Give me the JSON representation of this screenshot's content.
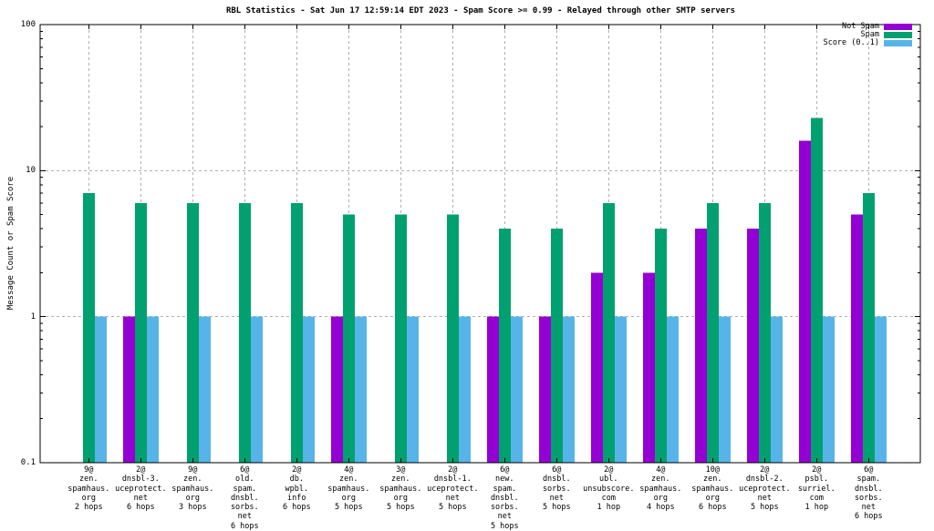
{
  "chart_data": {
    "type": "bar",
    "title": "RBL Statistics - Sat Jun 17 12:59:14 EDT 2023 - Spam Score >= 0.99 - Relayed through other SMTP servers",
    "ylabel": "Message Count or Spam Score",
    "yscale": "log",
    "ylim": [
      0.1,
      100
    ],
    "ytick_values": [
      0.1,
      1,
      10,
      100
    ],
    "ytick_labels": [
      "0.1",
      "1",
      "10",
      "100"
    ],
    "grid": true,
    "legend_position": "top-right-inside",
    "categories": [
      [
        "9@",
        "zen.",
        "spamhaus.",
        "org",
        "2 hops"
      ],
      [
        "2@",
        "dnsbl-3.",
        "uceprotect.",
        "net",
        "6 hops"
      ],
      [
        "9@",
        "zen.",
        "spamhaus.",
        "org",
        "3 hops"
      ],
      [
        "6@",
        "old.",
        "spam.",
        "dnsbl.",
        "sorbs.",
        "net",
        "6 hops"
      ],
      [
        "2@",
        "db.",
        "wpbl.",
        "info",
        "6 hops"
      ],
      [
        "4@",
        "zen.",
        "spamhaus.",
        "org",
        "5 hops"
      ],
      [
        "3@",
        "zen.",
        "spamhaus.",
        "org",
        "5 hops"
      ],
      [
        "2@",
        "dnsbl-1.",
        "uceprotect.",
        "net",
        "5 hops"
      ],
      [
        "6@",
        "new.",
        "spam.",
        "dnsbl.",
        "sorbs.",
        "net",
        "5 hops"
      ],
      [
        "6@",
        "dnsbl.",
        "sorbs.",
        "net",
        "5 hops"
      ],
      [
        "2@",
        "ubl.",
        "unsubscore.",
        "com",
        "1 hop"
      ],
      [
        "4@",
        "zen.",
        "spamhaus.",
        "org",
        "4 hops"
      ],
      [
        "10@",
        "zen.",
        "spamhaus.",
        "org",
        "6 hops"
      ],
      [
        "2@",
        "dnsbl-2.",
        "uceprotect.",
        "net",
        "5 hops"
      ],
      [
        "2@",
        "psbl.",
        "surriel.",
        "com",
        "1 hop"
      ],
      [
        "6@",
        "spam.",
        "dnsbl.",
        "sorbs.",
        "net",
        "6 hops"
      ]
    ],
    "series": [
      {
        "name": "Not Spam",
        "color": "#9400d3",
        "values": [
          0,
          1,
          0,
          0,
          0,
          1,
          0,
          0,
          1,
          1,
          2,
          2,
          4,
          4,
          16,
          5
        ]
      },
      {
        "name": "Spam",
        "color": "#00a070",
        "values": [
          7,
          6,
          6,
          6,
          6,
          5,
          5,
          5,
          4,
          4,
          6,
          4,
          6,
          6,
          23,
          7
        ]
      },
      {
        "name": "Score (0..1)",
        "color": "#56b4e9",
        "values": [
          1,
          1,
          1,
          1,
          1,
          1,
          1,
          1,
          1,
          1,
          1,
          1,
          1,
          1,
          1,
          1
        ]
      }
    ]
  },
  "colors": {
    "background": "#ffffff",
    "axis": "#000000",
    "grid": "#b0b0b0"
  }
}
